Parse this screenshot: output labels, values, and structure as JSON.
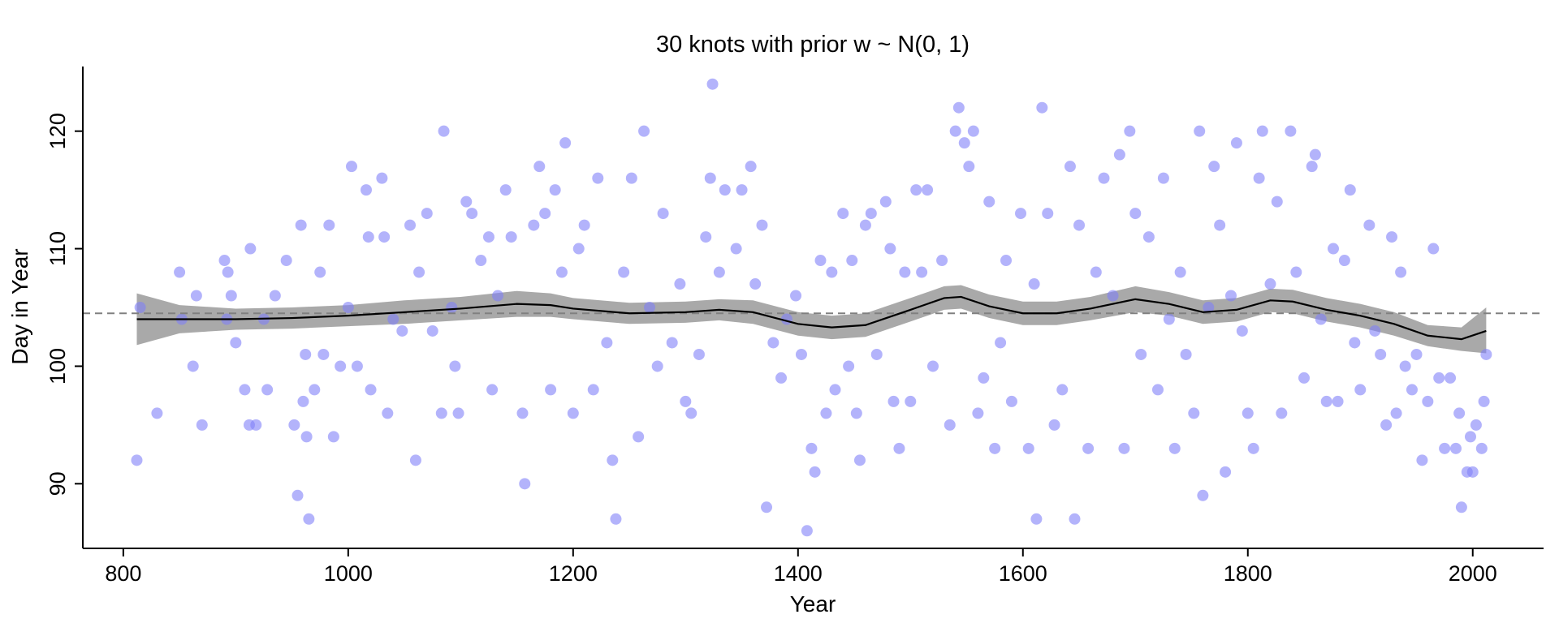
{
  "chart_data": {
    "type": "scatter-spline",
    "title": "30 knots with prior w ~ N(0, 1)",
    "x_label": "Year",
    "y_label": "Day in Year",
    "xlim": [
      764,
      2063
    ],
    "ylim": [
      84.5,
      125.5
    ],
    "xticks": [
      800,
      1000,
      1200,
      1400,
      1600,
      1800,
      2000
    ],
    "yticks": [
      90,
      100,
      110,
      120
    ],
    "grid": false,
    "points": {
      "color": "#8080f8",
      "x": [
        812,
        815,
        830,
        850,
        852,
        862,
        865,
        870,
        890,
        892,
        893,
        896,
        900,
        908,
        912,
        913,
        918,
        925,
        928,
        935,
        945,
        952,
        955,
        958,
        960,
        962,
        963,
        965,
        970,
        975,
        978,
        983,
        987,
        993,
        1000,
        1003,
        1008,
        1016,
        1018,
        1020,
        1030,
        1032,
        1035,
        1040,
        1048,
        1055,
        1060,
        1063,
        1070,
        1075,
        1083,
        1085,
        1092,
        1095,
        1098,
        1105,
        1110,
        1118,
        1125,
        1128,
        1133,
        1140,
        1145,
        1155,
        1157,
        1165,
        1170,
        1175,
        1180,
        1184,
        1190,
        1193,
        1200,
        1205,
        1210,
        1218,
        1222,
        1230,
        1235,
        1238,
        1245,
        1252,
        1258,
        1263,
        1268,
        1275,
        1280,
        1288,
        1295,
        1300,
        1305,
        1312,
        1318,
        1322,
        1324,
        1330,
        1335,
        1345,
        1350,
        1358,
        1362,
        1368,
        1372,
        1378,
        1385,
        1390,
        1398,
        1403,
        1408,
        1412,
        1415,
        1420,
        1425,
        1430,
        1433,
        1440,
        1445,
        1448,
        1452,
        1455,
        1460,
        1465,
        1470,
        1478,
        1482,
        1485,
        1490,
        1495,
        1500,
        1505,
        1510,
        1515,
        1520,
        1528,
        1535,
        1540,
        1543,
        1548,
        1552,
        1556,
        1560,
        1565,
        1570,
        1575,
        1580,
        1585,
        1590,
        1598,
        1605,
        1610,
        1612,
        1617,
        1622,
        1628,
        1635,
        1642,
        1646,
        1650,
        1658,
        1665,
        1672,
        1680,
        1686,
        1690,
        1695,
        1700,
        1705,
        1712,
        1720,
        1725,
        1730,
        1735,
        1740,
        1745,
        1752,
        1757,
        1760,
        1765,
        1770,
        1775,
        1780,
        1785,
        1790,
        1795,
        1800,
        1805,
        1810,
        1813,
        1820,
        1826,
        1830,
        1838,
        1843,
        1850,
        1857,
        1860,
        1865,
        1870,
        1876,
        1880,
        1886,
        1891,
        1895,
        1900,
        1908,
        1913,
        1918,
        1923,
        1928,
        1932,
        1936,
        1940,
        1946,
        1950,
        1955,
        1960,
        1965,
        1970,
        1975,
        1980,
        1985,
        1988,
        1990,
        1995,
        1998,
        2000,
        2003,
        2008,
        2010,
        2012
      ],
      "y": [
        92,
        105,
        96,
        108,
        104,
        100,
        106,
        95,
        109,
        104,
        108,
        106,
        102,
        98,
        95,
        110,
        95,
        104,
        98,
        106,
        109,
        95,
        89,
        112,
        97,
        101,
        94,
        87,
        98,
        108,
        101,
        112,
        94,
        100,
        105,
        117,
        100,
        115,
        111,
        98,
        116,
        111,
        96,
        104,
        103,
        112,
        92,
        108,
        113,
        103,
        96,
        120,
        105,
        100,
        96,
        114,
        113,
        109,
        111,
        98,
        106,
        115,
        111,
        96,
        90,
        112,
        117,
        113,
        98,
        115,
        108,
        119,
        96,
        110,
        112,
        98,
        116,
        102,
        92,
        87,
        108,
        116,
        94,
        120,
        105,
        100,
        113,
        102,
        107,
        97,
        96,
        101,
        111,
        116,
        124,
        108,
        115,
        110,
        115,
        117,
        107,
        112,
        88,
        102,
        99,
        104,
        106,
        101,
        86,
        93,
        91,
        109,
        96,
        108,
        98,
        113,
        100,
        109,
        96,
        92,
        112,
        113,
        101,
        114,
        110,
        97,
        93,
        108,
        97,
        115,
        108,
        115,
        100,
        109,
        95,
        120,
        122,
        119,
        117,
        120,
        96,
        99,
        114,
        93,
        102,
        109,
        97,
        113,
        93,
        107,
        87,
        122,
        113,
        95,
        98,
        117,
        87,
        112,
        93,
        108,
        116,
        106,
        118,
        93,
        120,
        113,
        101,
        111,
        98,
        116,
        104,
        93,
        108,
        101,
        96,
        120,
        89,
        105,
        117,
        112,
        91,
        106,
        119,
        103,
        96,
        93,
        116,
        120,
        107,
        114,
        96,
        120,
        108,
        99,
        117,
        118,
        104,
        97,
        110,
        97,
        109,
        115,
        102,
        98,
        112,
        103,
        101,
        95,
        111,
        96,
        108,
        100,
        98,
        101,
        92,
        97,
        110,
        99,
        93,
        99,
        93,
        96,
        88,
        91,
        94,
        91,
        95,
        93,
        97,
        101
      ]
    },
    "fit": {
      "color": "#000000",
      "band_color": "#a0a0a0",
      "x": [
        812,
        850,
        900,
        950,
        1000,
        1050,
        1100,
        1150,
        1180,
        1200,
        1250,
        1300,
        1330,
        1360,
        1400,
        1430,
        1460,
        1500,
        1530,
        1545,
        1570,
        1600,
        1630,
        1660,
        1700,
        1730,
        1760,
        1790,
        1820,
        1840,
        1870,
        1900,
        1930,
        1960,
        1990,
        2012
      ],
      "y": [
        104,
        104,
        104,
        104.1,
        104.3,
        104.6,
        104.9,
        105.3,
        105.2,
        104.9,
        104.5,
        104.6,
        104.8,
        104.6,
        103.6,
        103.3,
        103.5,
        104.8,
        105.8,
        105.9,
        105.1,
        104.5,
        104.5,
        104.9,
        105.7,
        105.3,
        104.6,
        104.8,
        105.6,
        105.5,
        104.8,
        104.3,
        103.6,
        102.6,
        102.3,
        103
      ],
      "lower": [
        101.8,
        102.8,
        103.1,
        103.2,
        103.4,
        103.6,
        103.9,
        104.2,
        104.2,
        104,
        103.6,
        103.7,
        103.9,
        103.6,
        102.6,
        102.3,
        102.5,
        103.8,
        104.8,
        104.9,
        104.1,
        103.5,
        103.5,
        103.9,
        104.6,
        104.3,
        103.6,
        103.8,
        104.6,
        104.5,
        103.8,
        103.3,
        102.6,
        101.7,
        101.3,
        101.1
      ],
      "upper": [
        106.2,
        105.2,
        104.9,
        105,
        105.2,
        105.6,
        105.9,
        106.4,
        106.2,
        105.8,
        105.4,
        105.5,
        105.7,
        105.6,
        104.6,
        104.3,
        104.5,
        105.8,
        106.8,
        106.9,
        106.1,
        105.5,
        105.5,
        105.9,
        106.8,
        106.3,
        105.6,
        105.8,
        106.6,
        106.5,
        105.8,
        105.3,
        104.6,
        103.5,
        103.3,
        105
      ]
    },
    "reference_line": {
      "y": 104.5,
      "color": "#808080",
      "dashed": true
    }
  }
}
